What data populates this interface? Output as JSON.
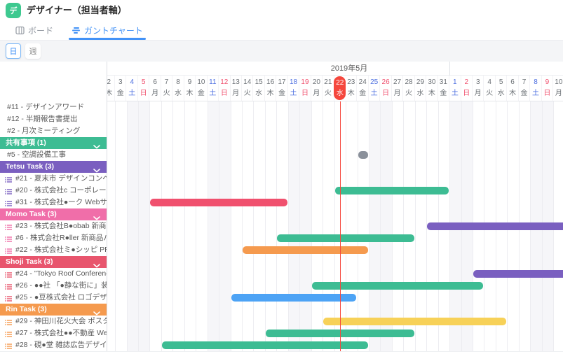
{
  "header": {
    "app_initial": "デ",
    "title": "デザイナー（担当者軸）"
  },
  "tabs": [
    {
      "label": "ボード",
      "active": false
    },
    {
      "label": "ガントチャート",
      "active": true
    }
  ],
  "toolbar": {
    "day_label": "日",
    "week_label": "週"
  },
  "colors": {
    "accent_blue": "#4292f7",
    "app_icon_green": "#3ec990",
    "today_red": "#f5473d",
    "saturday_blue": "#4d6fe0",
    "sunday_red": "#f0506e",
    "bar_green": "#3dbc93",
    "bar_red": "#f0506e",
    "bar_purple": "#7a5fc0",
    "bar_orange": "#f59a4e",
    "bar_blue": "#4da3f5",
    "bar_yellow": "#f7d158",
    "bar_gray": "#8a909a",
    "section_shared": "#3dbc93",
    "section_tetsu": "#7a5fc0",
    "section_momo": "#f06ea9",
    "section_shoji": "#e8556d",
    "section_rin": "#f59a4e"
  },
  "chart_data": {
    "type": "gantt",
    "month_label": "2019年5月",
    "month_divider_day_index": 30,
    "today_day_index": 20,
    "today_labels": {
      "num": "22",
      "wk": "水"
    },
    "days": [
      {
        "d": "2",
        "w": "木"
      },
      {
        "d": "3",
        "w": "金"
      },
      {
        "d": "4",
        "w": "土",
        "t": "sat"
      },
      {
        "d": "5",
        "w": "日",
        "t": "sun"
      },
      {
        "d": "6",
        "w": "月"
      },
      {
        "d": "7",
        "w": "火"
      },
      {
        "d": "8",
        "w": "水"
      },
      {
        "d": "9",
        "w": "木"
      },
      {
        "d": "10",
        "w": "金"
      },
      {
        "d": "11",
        "w": "土",
        "t": "sat"
      },
      {
        "d": "12",
        "w": "日",
        "t": "sun"
      },
      {
        "d": "13",
        "w": "月"
      },
      {
        "d": "14",
        "w": "火"
      },
      {
        "d": "15",
        "w": "水"
      },
      {
        "d": "16",
        "w": "木"
      },
      {
        "d": "17",
        "w": "金"
      },
      {
        "d": "18",
        "w": "土",
        "t": "sat"
      },
      {
        "d": "19",
        "w": "日",
        "t": "sun"
      },
      {
        "d": "20",
        "w": "月"
      },
      {
        "d": "21",
        "w": "火"
      },
      {
        "d": "22",
        "w": "水",
        "t": "today"
      },
      {
        "d": "23",
        "w": "木"
      },
      {
        "d": "24",
        "w": "金"
      },
      {
        "d": "25",
        "w": "土",
        "t": "sat"
      },
      {
        "d": "26",
        "w": "日",
        "t": "sun"
      },
      {
        "d": "27",
        "w": "月"
      },
      {
        "d": "28",
        "w": "火"
      },
      {
        "d": "29",
        "w": "水"
      },
      {
        "d": "30",
        "w": "木"
      },
      {
        "d": "31",
        "w": "金"
      },
      {
        "d": "1",
        "w": "土",
        "t": "sat"
      },
      {
        "d": "2",
        "w": "日",
        "t": "sun"
      },
      {
        "d": "3",
        "w": "月"
      },
      {
        "d": "4",
        "w": "火"
      },
      {
        "d": "5",
        "w": "水"
      },
      {
        "d": "6",
        "w": "木"
      },
      {
        "d": "7",
        "w": "金"
      },
      {
        "d": "8",
        "w": "土",
        "t": "sat"
      },
      {
        "d": "9",
        "w": "日",
        "t": "sun"
      },
      {
        "d": "10",
        "w": "月"
      }
    ],
    "rows": [
      {
        "type": "task",
        "label": "#11 - デザインアワード"
      },
      {
        "type": "task",
        "label": "#12 - 半期報告書提出"
      },
      {
        "type": "task",
        "label": "#2 - 月次ミーティング"
      },
      {
        "type": "section",
        "label": "共有事項 (1)",
        "color_key": "section_shared"
      },
      {
        "type": "task",
        "label": "#5 - 空調設備工事"
      },
      {
        "type": "section",
        "label": "Tetsu Task (3)",
        "color_key": "section_tetsu"
      },
      {
        "type": "task",
        "label": "#21 - 夏末市 デザインコンペ",
        "icon_color_key": "section_tetsu"
      },
      {
        "type": "task",
        "label": "#20 - 株式会社c コーポレートサイトデ...",
        "icon_color_key": "section_tetsu"
      },
      {
        "type": "task",
        "label": "#31 - 株式会社●ーク Webサイトグラフ...",
        "icon_color_key": "section_tetsu"
      },
      {
        "type": "section",
        "label": "Momo Task (3)",
        "color_key": "section_momo"
      },
      {
        "type": "task",
        "label": "#23 - 株式会社B●obab 新商品ポスター...",
        "icon_color_key": "section_momo"
      },
      {
        "type": "task",
        "label": "#6 - 株式会社R●ller 新商品パッケージデ...",
        "icon_color_key": "section_momo"
      },
      {
        "type": "task",
        "label": "#22 - 株式会社ミ●シッピ PRポスター制作",
        "icon_color_key": "section_momo"
      },
      {
        "type": "section",
        "label": "Shoji Task (3)",
        "color_key": "section_shoji"
      },
      {
        "type": "task",
        "label": "#24 - \"Tokyo Roof Conference\" ポスター...",
        "icon_color_key": "section_shoji"
      },
      {
        "type": "task",
        "label": "#26 - ●●社 「●静な街に」装丁デザイン",
        "icon_color_key": "section_shoji"
      },
      {
        "type": "task",
        "label": "#25 - ●豆株式会社 ロゴデザイン",
        "icon_color_key": "section_shoji"
      },
      {
        "type": "section",
        "label": "Rin Task (3)",
        "color_key": "section_rin"
      },
      {
        "type": "task",
        "label": "#29 - 神田川花火大会 ポスター制作",
        "icon_color_key": "section_rin"
      },
      {
        "type": "task",
        "label": "#27 - 株式会社●●不動産 Web広告デザイン",
        "icon_color_key": "section_rin"
      },
      {
        "type": "task",
        "label": "#28 - 硯●堂 雑誌広告デザイン",
        "icon_color_key": "section_rin"
      }
    ],
    "bars": [
      {
        "row": 4,
        "start": 22,
        "end": 22,
        "color_key": "bar_gray"
      },
      {
        "row": 7,
        "start": 20,
        "end": 29,
        "color_key": "bar_green"
      },
      {
        "row": 8,
        "start": 4,
        "end": 15,
        "color_key": "bar_red"
      },
      {
        "row": 10,
        "start": 28,
        "end": null,
        "cut_right": true,
        "color_key": "bar_purple"
      },
      {
        "row": 11,
        "start": 15,
        "end": 26,
        "color_key": "bar_green"
      },
      {
        "row": 12,
        "start": 12,
        "end": 22,
        "color_key": "bar_orange"
      },
      {
        "row": 14,
        "start": 32,
        "end": null,
        "cut_right": true,
        "color_key": "bar_purple"
      },
      {
        "row": 15,
        "start": 18,
        "end": 32,
        "color_key": "bar_green"
      },
      {
        "row": 16,
        "start": 11,
        "end": 21,
        "color_key": "bar_blue"
      },
      {
        "row": 18,
        "start": 19,
        "end": 34,
        "color_key": "bar_yellow"
      },
      {
        "row": 19,
        "start": 14,
        "end": 26,
        "color_key": "bar_green"
      },
      {
        "row": 20,
        "start": 5,
        "end": 22,
        "color_key": "bar_green"
      }
    ]
  }
}
